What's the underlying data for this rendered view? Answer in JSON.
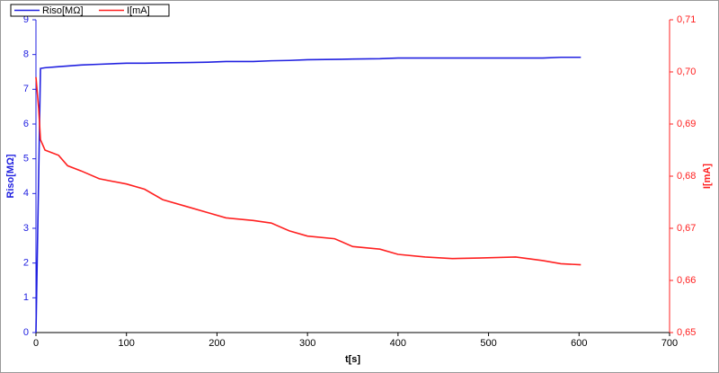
{
  "chart_data": {
    "type": "line",
    "x_label": "t[s]",
    "y_label": "Riso[MΩ]",
    "y2_label": "I[mA]",
    "x": [
      0,
      3,
      5,
      10,
      25,
      35,
      50,
      70,
      100,
      120,
      140,
      170,
      190,
      210,
      240,
      260,
      280,
      300,
      330,
      350,
      380,
      400,
      430,
      460,
      490,
      530,
      560,
      580,
      602
    ],
    "series": [
      {
        "name": "Riso[MΩ]",
        "color": "#2020e0",
        "values": [
          0,
          4.5,
          7.6,
          7.62,
          7.65,
          7.67,
          7.7,
          7.72,
          7.75,
          7.75,
          7.76,
          7.77,
          7.78,
          7.8,
          7.8,
          7.82,
          7.83,
          7.85,
          7.86,
          7.87,
          7.88,
          7.9,
          7.9,
          7.9,
          7.9,
          7.9,
          7.9,
          7.92,
          7.92
        ]
      },
      {
        "name": "I[mA]",
        "color": "#ff2020",
        "axis": "y2",
        "values": [
          0.699,
          0.693,
          0.687,
          0.685,
          0.684,
          0.682,
          0.681,
          0.6795,
          0.6785,
          0.6775,
          0.6755,
          0.674,
          0.673,
          0.672,
          0.6715,
          0.671,
          0.6695,
          0.6685,
          0.668,
          0.6665,
          0.666,
          0.665,
          0.6645,
          0.6642,
          0.6643,
          0.6645,
          0.6638,
          0.6632,
          0.663
        ]
      }
    ],
    "xlim": [
      0,
      700
    ],
    "xticks": [
      0,
      100,
      200,
      300,
      400,
      500,
      600,
      700
    ],
    "ylim": [
      0,
      9
    ],
    "yticks": [
      0,
      1,
      2,
      3,
      4,
      5,
      6,
      7,
      8,
      9
    ],
    "y2lim": [
      0.65,
      0.71
    ],
    "y2ticks": [
      {
        "value": 0.65,
        "label": "0,65"
      },
      {
        "value": 0.66,
        "label": "0,66"
      },
      {
        "value": 0.67,
        "label": "0,67"
      },
      {
        "value": 0.68,
        "label": "0,68"
      },
      {
        "value": 0.69,
        "label": "0,69"
      },
      {
        "value": 0.7,
        "label": "0,70"
      },
      {
        "value": 0.71,
        "label": "0,71"
      }
    ],
    "legend": "top-left",
    "grid": false
  }
}
